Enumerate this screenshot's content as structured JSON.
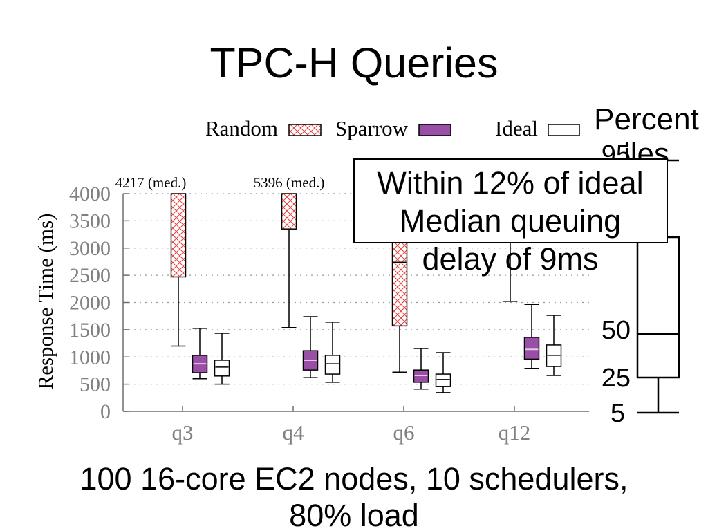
{
  "slide": {
    "title": "TPC-H Queries",
    "caption_lines": [
      "100 16-core EC2 nodes, 10 schedulers,",
      "80% load"
    ]
  },
  "percentile_legend": {
    "title_lines": [
      "Percent",
      "iles"
    ],
    "labels": {
      "p95": "95",
      "p50": "50",
      "p25": "25",
      "p5": "5"
    }
  },
  "callout": {
    "lines": [
      "Within 12% of ideal",
      "Median queuing",
      "delay of 9ms"
    ]
  },
  "chart_data": {
    "type": "box",
    "ylabel": "Response Time (ms)",
    "ylim": [
      0,
      4000
    ],
    "yticks": [
      0,
      500,
      1000,
      1500,
      2000,
      2500,
      3000,
      3500,
      4000
    ],
    "categories": [
      "q3",
      "q4",
      "q6",
      "q12"
    ],
    "grid": true,
    "legend_position": "top",
    "series": [
      {
        "name": "Random",
        "color": "#e8413c",
        "values": [
          {
            "p5": 1200,
            "p25": 2470,
            "p50": 4217,
            "p75": null,
            "p95": null
          },
          {
            "p5": 1540,
            "p25": 3350,
            "p50": 5396,
            "p75": null,
            "p95": null
          },
          {
            "p5": 720,
            "p25": 1570,
            "p50": 2740,
            "p75": null,
            "p95": null
          },
          {
            "p5": 2020,
            "p25": null,
            "p50": null,
            "p75": null,
            "p95": null
          }
        ]
      },
      {
        "name": "Sparrow",
        "color": "#9a4fa6",
        "values": [
          {
            "p5": 600,
            "p25": 710,
            "p50": 875,
            "p75": 1030,
            "p95": 1525
          },
          {
            "p5": 620,
            "p25": 760,
            "p50": 940,
            "p75": 1115,
            "p95": 1740
          },
          {
            "p5": 410,
            "p25": 535,
            "p50": 660,
            "p75": 760,
            "p95": 1155
          },
          {
            "p5": 790,
            "p25": 960,
            "p50": 1140,
            "p75": 1360,
            "p95": 1965
          }
        ]
      },
      {
        "name": "Ideal",
        "color": "#ffffff",
        "values": [
          {
            "p5": 500,
            "p25": 650,
            "p50": 815,
            "p75": 940,
            "p95": 1435
          },
          {
            "p5": 535,
            "p25": 685,
            "p50": 875,
            "p75": 1030,
            "p95": 1640
          },
          {
            "p5": 345,
            "p25": 455,
            "p50": 585,
            "p75": 685,
            "p95": 1080
          },
          {
            "p5": 660,
            "p25": 825,
            "p50": 1030,
            "p75": 1220,
            "p95": 1765
          }
        ]
      }
    ],
    "annotations": [
      {
        "category": "q3",
        "series": "Random",
        "text": "4217 (med.)"
      },
      {
        "category": "q4",
        "series": "Random",
        "text": "5396 (med.)"
      }
    ]
  }
}
